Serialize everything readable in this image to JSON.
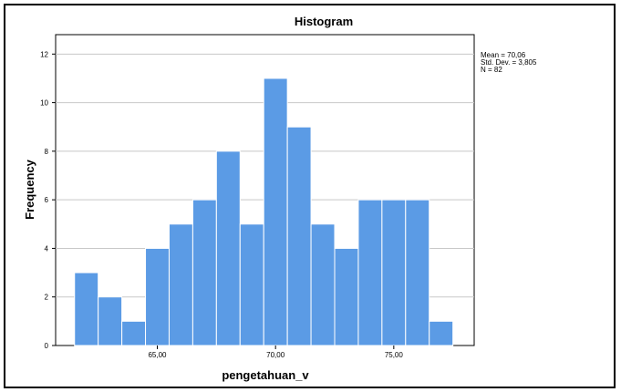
{
  "chart_data": {
    "type": "bar",
    "title": "Histogram",
    "xlabel": "pengetahuan_v",
    "ylabel": "Frequency",
    "bin_width": 1,
    "bins": [
      {
        "x": 62,
        "count": 3
      },
      {
        "x": 63,
        "count": 2
      },
      {
        "x": 64,
        "count": 1
      },
      {
        "x": 65,
        "count": 4
      },
      {
        "x": 66,
        "count": 5
      },
      {
        "x": 67,
        "count": 6
      },
      {
        "x": 68,
        "count": 8
      },
      {
        "x": 69,
        "count": 5
      },
      {
        "x": 70,
        "count": 11
      },
      {
        "x": 71,
        "count": 9
      },
      {
        "x": 72,
        "count": 5
      },
      {
        "x": 73,
        "count": 4
      },
      {
        "x": 74,
        "count": 6
      },
      {
        "x": 75,
        "count": 6
      },
      {
        "x": 76,
        "count": 6
      },
      {
        "x": 77,
        "count": 1
      }
    ],
    "xlim": [
      60.7,
      78.4
    ],
    "ylim": [
      0,
      12.8
    ],
    "xticks": [
      {
        "value": 65,
        "label": "65,00"
      },
      {
        "value": 70,
        "label": "70,00"
      },
      {
        "value": 75,
        "label": "75,00"
      }
    ],
    "yticks": [
      {
        "value": 0,
        "label": "0"
      },
      {
        "value": 2,
        "label": "2"
      },
      {
        "value": 4,
        "label": "4"
      },
      {
        "value": 6,
        "label": "6"
      },
      {
        "value": 8,
        "label": "8"
      },
      {
        "value": 10,
        "label": "10"
      },
      {
        "value": 12,
        "label": "12"
      }
    ],
    "grid": "horizontal",
    "bar_color": "#5B9BE5",
    "stats": {
      "mean": "Mean = 70,06",
      "std": "Std. Dev. = 3,805",
      "n": "N = 82"
    }
  }
}
